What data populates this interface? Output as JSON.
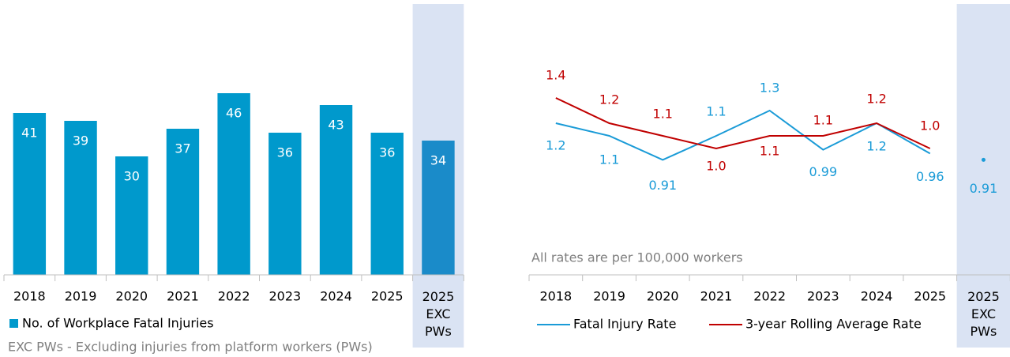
{
  "chart_data": [
    {
      "type": "bar",
      "categories": [
        "2018",
        "2019",
        "2020",
        "2021",
        "2022",
        "2023",
        "2024",
        "2025",
        "2025 EXC PWs"
      ],
      "series": [
        {
          "name": "No. of Workplace Fatal Injuries",
          "color": "#0099cc",
          "values": [
            41,
            39,
            30,
            37,
            46,
            36,
            43,
            36,
            34
          ]
        }
      ],
      "highlight_color": "#1a8bc9",
      "shade_color": "#dae3f3",
      "ylim": [
        0,
        50
      ],
      "annotation": "EXC PWs - Excluding injuries from platform workers (PWs)"
    },
    {
      "type": "line",
      "categories": [
        "2018",
        "2019",
        "2020",
        "2021",
        "2022",
        "2023",
        "2024",
        "2025",
        "2025 EXC PWs"
      ],
      "series": [
        {
          "name": "Fatal Injury Rate",
          "color": "#1a9bd7",
          "values": [
            1.2,
            1.1,
            0.91,
            1.1,
            1.3,
            0.99,
            1.2,
            0.96,
            0.91
          ]
        },
        {
          "name": "3-year Rolling Average Rate",
          "color": "#c00000",
          "values": [
            1.4,
            1.2,
            1.1,
            1.0,
            1.1,
            1.1,
            1.2,
            1.0,
            null
          ],
          "value_labels": [
            "1.4",
            "1.2",
            "1.1",
            "1.0",
            "1.1",
            "1.1",
            "1.2",
            "1.0",
            null
          ]
        }
      ],
      "shade_color": "#dae3f3",
      "ylim": [
        0,
        1.5
      ],
      "annotation": "All rates are per 100,000 workers"
    }
  ]
}
